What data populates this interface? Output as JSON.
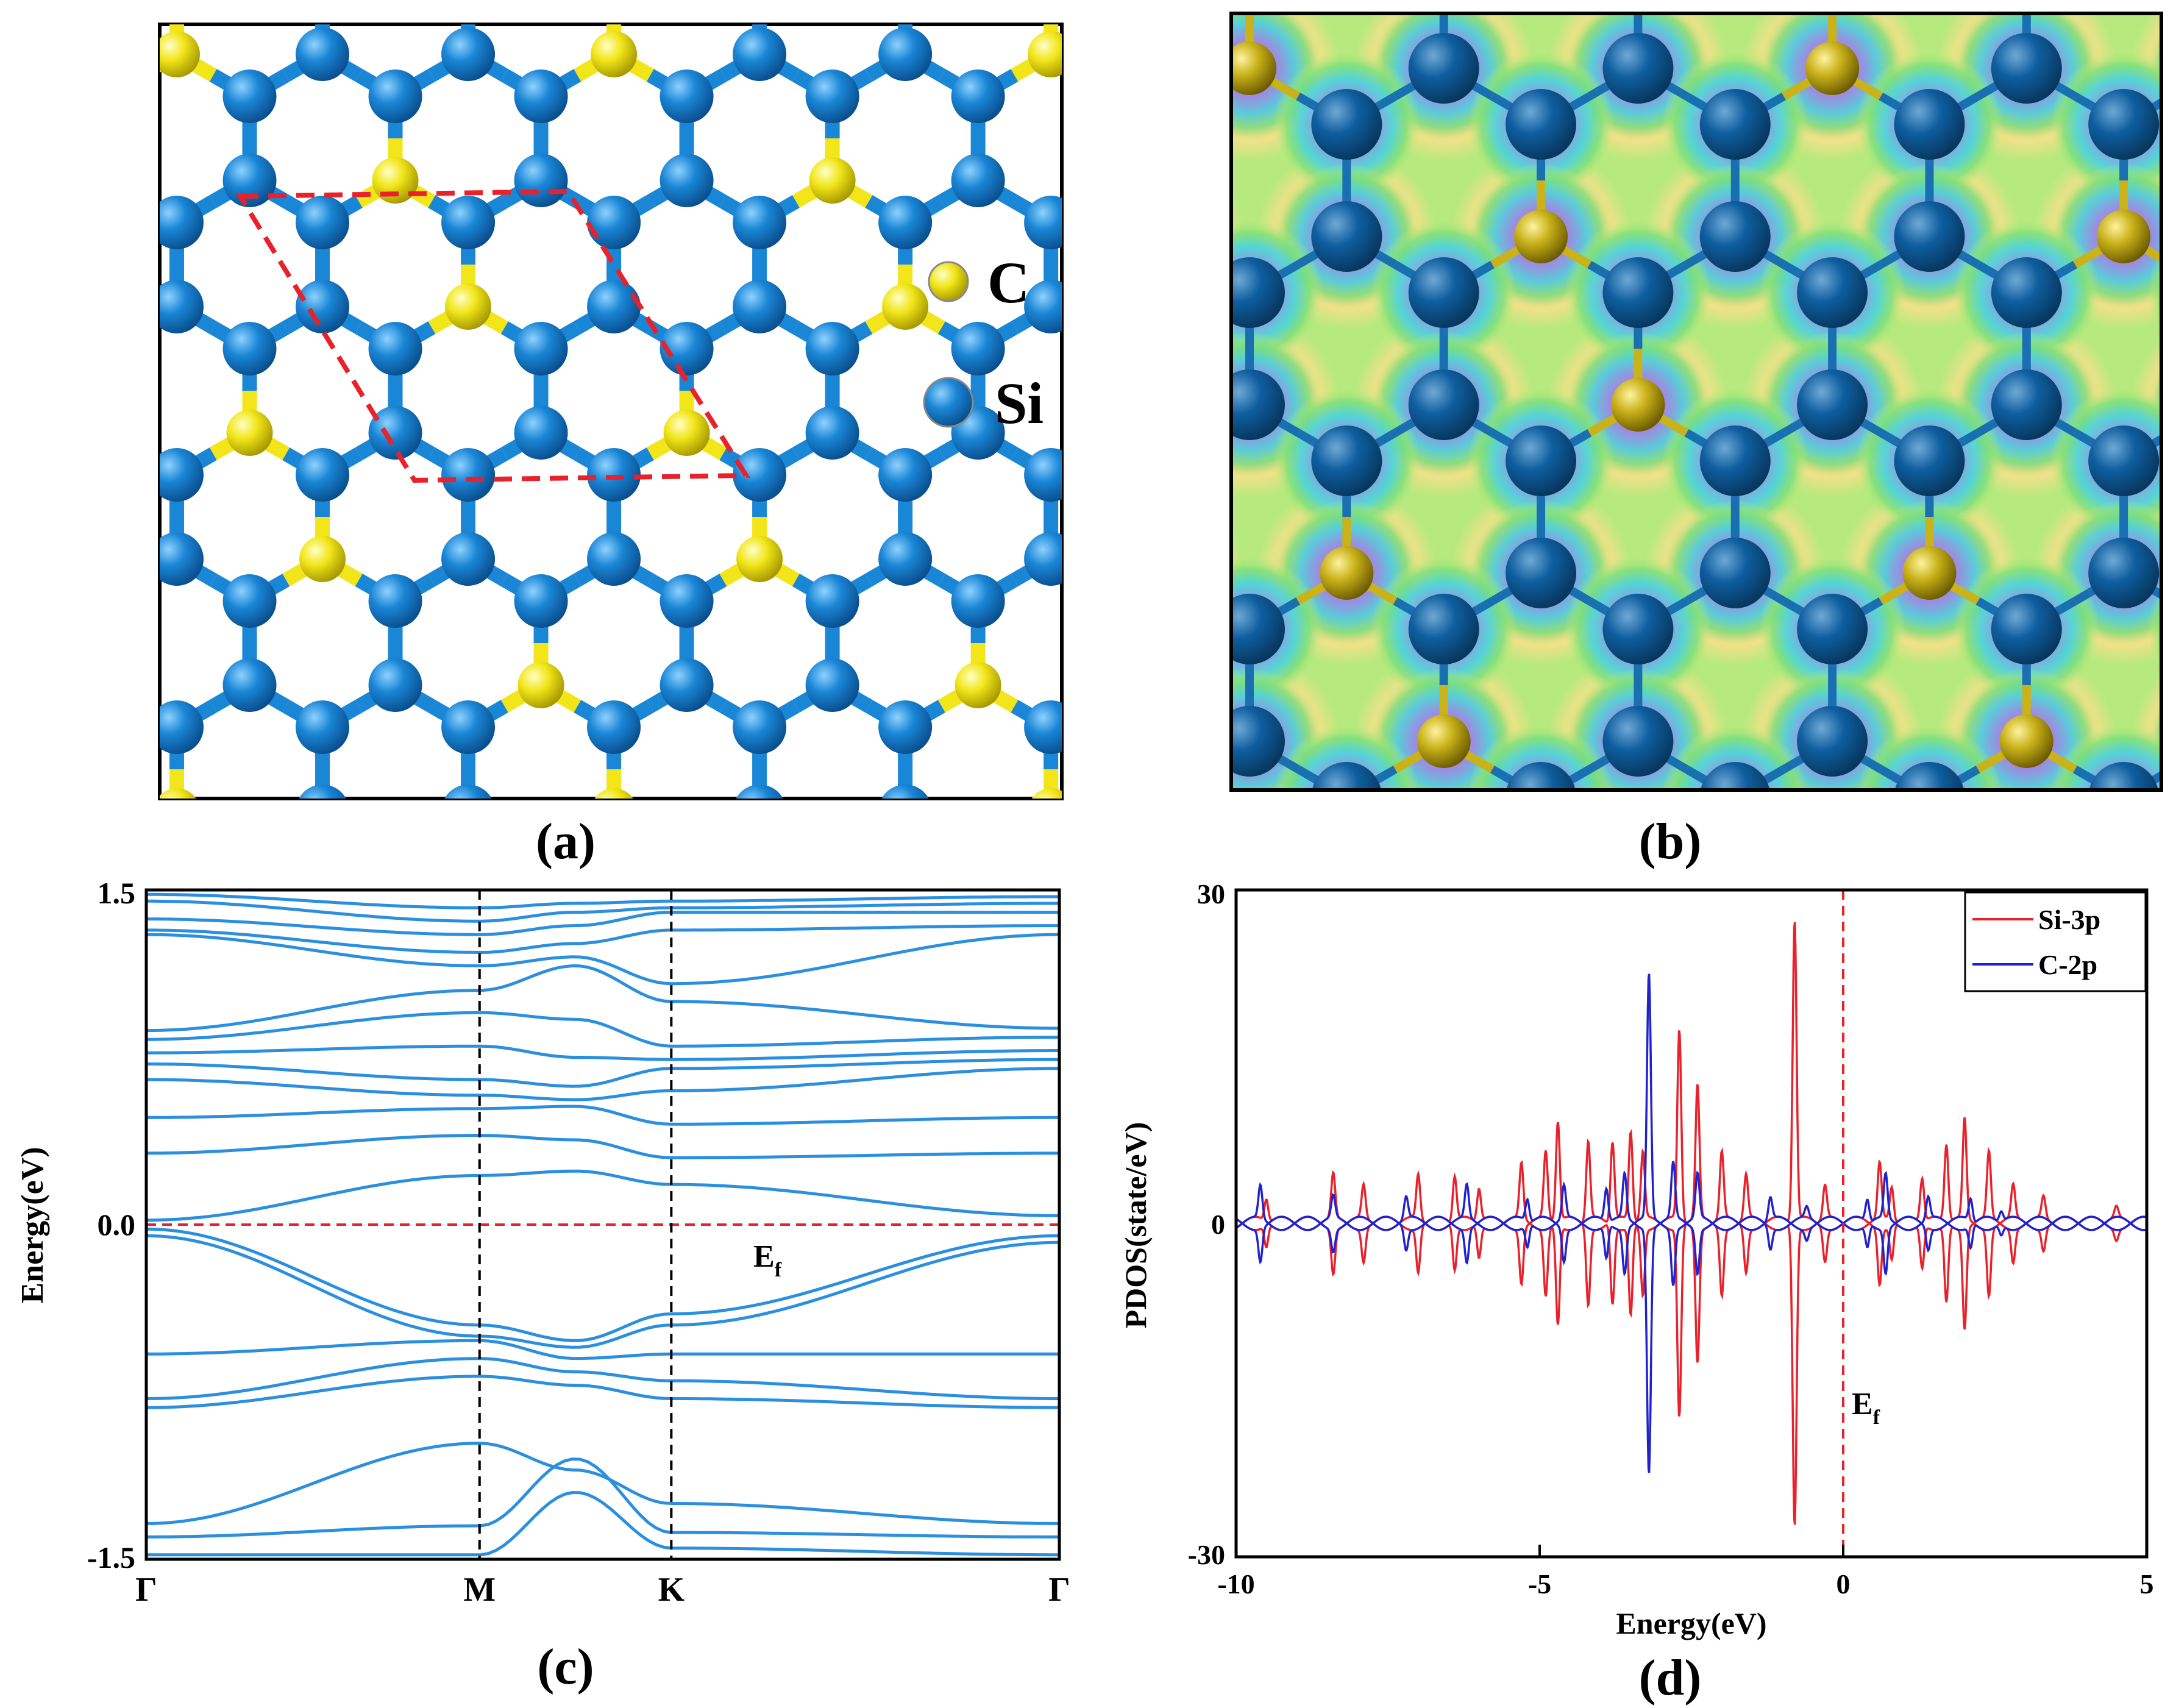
{
  "panels": {
    "a": {
      "label": "(a)",
      "legend": [
        {
          "symbol": "C",
          "color": "#f2e61a"
        },
        {
          "symbol": "Si",
          "color": "#1a86d6"
        }
      ]
    },
    "b": {
      "label": "(b)"
    },
    "c": {
      "label": "(c)"
    },
    "d": {
      "label": "(d)"
    }
  },
  "colors": {
    "si": "#1a86d6",
    "c": "#f2e61a",
    "band": "#2b8fe0",
    "red": "#e8212b",
    "blue": "#2222cc"
  },
  "chart_data": [
    {
      "id": "band-structure",
      "type": "line",
      "title": "",
      "xlabel": "",
      "ylabel": "Energy(eV)",
      "ylim": [
        -1.5,
        1.5
      ],
      "yticks": [
        "1.5",
        "0.0",
        "-1.5"
      ],
      "kpoints": [
        "Γ",
        "M",
        "K",
        "Γ"
      ],
      "kpos": [
        0,
        0.365,
        0.575,
        1.0
      ],
      "fermi_label": "E",
      "fermi_sub": "f",
      "fermi_level": 0.0,
      "bands": [
        [
          1.48,
          1.42,
          1.44,
          1.45,
          1.47
        ],
        [
          1.45,
          1.36,
          1.4,
          1.42,
          1.44
        ],
        [
          1.37,
          1.3,
          1.34,
          1.4,
          1.4
        ],
        [
          1.32,
          1.22,
          1.26,
          1.32,
          1.34
        ],
        [
          1.3,
          1.16,
          1.2,
          1.08,
          1.3
        ],
        [
          0.87,
          1.05,
          1.16,
          1.0,
          0.88
        ],
        [
          0.83,
          0.95,
          0.92,
          0.8,
          0.84
        ],
        [
          0.77,
          0.8,
          0.75,
          0.74,
          0.78
        ],
        [
          0.72,
          0.65,
          0.62,
          0.7,
          0.74
        ],
        [
          0.65,
          0.58,
          0.56,
          0.6,
          0.7
        ],
        [
          0.48,
          0.52,
          0.53,
          0.45,
          0.48
        ],
        [
          0.32,
          0.4,
          0.38,
          0.3,
          0.32
        ],
        [
          0.02,
          0.22,
          0.24,
          0.18,
          0.04
        ],
        [
          -0.02,
          -0.45,
          -0.52,
          -0.4,
          -0.05
        ],
        [
          -0.05,
          -0.5,
          -0.55,
          -0.45,
          -0.08
        ],
        [
          -0.58,
          -0.52,
          -0.6,
          -0.58,
          -0.58
        ],
        [
          -0.78,
          -0.6,
          -0.66,
          -0.7,
          -0.78
        ],
        [
          -0.82,
          -0.68,
          -0.72,
          -0.78,
          -0.82
        ],
        [
          -1.34,
          -0.98,
          -1.1,
          -1.25,
          -1.34
        ],
        [
          -1.4,
          -1.35,
          -1.05,
          -1.38,
          -1.4
        ],
        [
          -1.48,
          -1.48,
          -1.2,
          -1.45,
          -1.48
        ]
      ]
    },
    {
      "id": "pdos",
      "type": "line",
      "title": "",
      "xlabel": "Energy(eV)",
      "ylabel": "PDOS(state/eV)",
      "xlim": [
        -10,
        5
      ],
      "ylim": [
        -30,
        30
      ],
      "xticks": [
        "-10",
        "-5",
        "0",
        "5"
      ],
      "yticks": [
        "30",
        "0",
        "-30"
      ],
      "fermi_label": "E",
      "fermi_sub": "f",
      "fermi_level": 0,
      "series": [
        {
          "name": "Si-3p",
          "color": "#e8212b",
          "peaks": [
            [
              -9.5,
              2
            ],
            [
              -8.4,
              4
            ],
            [
              -7.9,
              3
            ],
            [
              -7.0,
              4
            ],
            [
              -6.4,
              4
            ],
            [
              -6.0,
              3
            ],
            [
              -5.3,
              5
            ],
            [
              -4.9,
              6
            ],
            [
              -4.7,
              9
            ],
            [
              -4.2,
              7
            ],
            [
              -3.8,
              7
            ],
            [
              -3.5,
              8
            ],
            [
              -3.3,
              6
            ],
            [
              -2.7,
              17
            ],
            [
              -2.4,
              12
            ],
            [
              -2.0,
              6
            ],
            [
              -1.6,
              4
            ],
            [
              -0.8,
              27
            ],
            [
              -0.3,
              3
            ],
            [
              0.6,
              5
            ],
            [
              0.8,
              3
            ],
            [
              1.3,
              4
            ],
            [
              1.7,
              7
            ],
            [
              2.0,
              9
            ],
            [
              2.4,
              6
            ],
            [
              2.8,
              3
            ],
            [
              3.3,
              2
            ],
            [
              4.5,
              1
            ]
          ]
        },
        {
          "name": "C-2p",
          "color": "#2222cc",
          "peaks": [
            [
              -9.6,
              3
            ],
            [
              -8.4,
              2
            ],
            [
              -7.2,
              2
            ],
            [
              -6.2,
              3
            ],
            [
              -5.2,
              2
            ],
            [
              -4.6,
              3
            ],
            [
              -3.9,
              3
            ],
            [
              -3.6,
              4
            ],
            [
              -3.2,
              22
            ],
            [
              -2.8,
              5
            ],
            [
              -2.4,
              4
            ],
            [
              -1.2,
              2
            ],
            [
              -0.6,
              1
            ],
            [
              0.4,
              2
            ],
            [
              0.7,
              4
            ],
            [
              1.4,
              2
            ],
            [
              2.1,
              2
            ],
            [
              2.6,
              1
            ]
          ]
        }
      ]
    }
  ]
}
